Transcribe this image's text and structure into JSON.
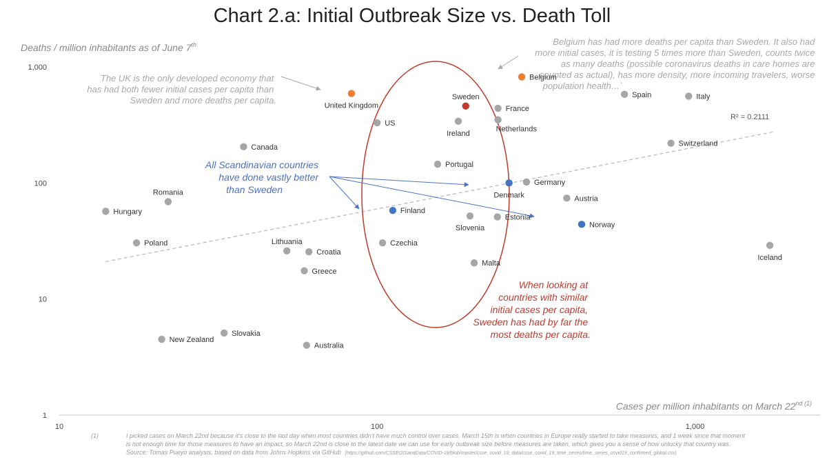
{
  "chart_data": {
    "type": "scatter",
    "title": "Chart 2.a: Initial Outbreak Size vs. Death Toll",
    "xlabel": "Cases per million inhabitants on March 22",
    "xlabel_sup": "nd (1)",
    "ylabel": "Deaths / million inhabitants as of June 7",
    "ylabel_sup": "th",
    "x_scale": "log",
    "y_scale": "log",
    "xlim": [
      10,
      2500
    ],
    "ylim": [
      1,
      1000
    ],
    "x_ticks": [
      {
        "v": 10,
        "label": "10"
      },
      {
        "v": 100,
        "label": "100"
      },
      {
        "v": 1000,
        "label": "1,000"
      }
    ],
    "y_ticks": [
      {
        "v": 1,
        "label": "1"
      },
      {
        "v": 10,
        "label": "10"
      },
      {
        "v": 100,
        "label": "100"
      },
      {
        "v": 1000,
        "label": "1,000"
      }
    ],
    "grid": false,
    "colors": {
      "default": "#a6a6a6",
      "orange": "#ed7d31",
      "red": "#c0392b",
      "blue": "#4472c4"
    },
    "points": [
      {
        "name": "Belgium",
        "x": 285,
        "y": 820,
        "color": "orange",
        "pos": "right"
      },
      {
        "name": "United Kingdom",
        "x": 83,
        "y": 590,
        "color": "orange",
        "pos": "below"
      },
      {
        "name": "Sweden",
        "x": 190,
        "y": 460,
        "color": "red",
        "pos": "above"
      },
      {
        "name": "Spain",
        "x": 600,
        "y": 580,
        "color": "default",
        "pos": "right"
      },
      {
        "name": "Italy",
        "x": 955,
        "y": 560,
        "color": "default",
        "pos": "right"
      },
      {
        "name": "France",
        "x": 240,
        "y": 440,
        "color": "default",
        "pos": "right"
      },
      {
        "name": "Ireland",
        "x": 180,
        "y": 340,
        "color": "default",
        "pos": "below"
      },
      {
        "name": "Netherlands",
        "x": 240,
        "y": 350,
        "color": "default",
        "pos": "below-right"
      },
      {
        "name": "US",
        "x": 100,
        "y": 330,
        "color": "default",
        "pos": "right"
      },
      {
        "name": "Switzerland",
        "x": 840,
        "y": 220,
        "color": "default",
        "pos": "right"
      },
      {
        "name": "Canada",
        "x": 38,
        "y": 205,
        "color": "default",
        "pos": "right"
      },
      {
        "name": "Portugal",
        "x": 155,
        "y": 145,
        "color": "default",
        "pos": "right"
      },
      {
        "name": "Denmark",
        "x": 260,
        "y": 100,
        "color": "blue",
        "pos": "below"
      },
      {
        "name": "Germany",
        "x": 295,
        "y": 102,
        "color": "default",
        "pos": "right"
      },
      {
        "name": "Austria",
        "x": 395,
        "y": 74,
        "color": "default",
        "pos": "right"
      },
      {
        "name": "Romania",
        "x": 22,
        "y": 69,
        "color": "default",
        "pos": "above"
      },
      {
        "name": "Hungary",
        "x": 14,
        "y": 57,
        "color": "default",
        "pos": "right"
      },
      {
        "name": "Finland",
        "x": 112,
        "y": 58,
        "color": "blue",
        "pos": "right"
      },
      {
        "name": "Slovenia",
        "x": 196,
        "y": 52,
        "color": "default",
        "pos": "below"
      },
      {
        "name": "Estonia",
        "x": 239,
        "y": 51,
        "color": "default",
        "pos": "right"
      },
      {
        "name": "Norway",
        "x": 440,
        "y": 44,
        "color": "blue",
        "pos": "right"
      },
      {
        "name": "Poland",
        "x": 17.5,
        "y": 30.5,
        "color": "default",
        "pos": "right"
      },
      {
        "name": "Czechia",
        "x": 104,
        "y": 30.5,
        "color": "default",
        "pos": "right"
      },
      {
        "name": "Lithuania",
        "x": 52,
        "y": 26,
        "color": "default",
        "pos": "above"
      },
      {
        "name": "Croatia",
        "x": 61,
        "y": 25.5,
        "color": "default",
        "pos": "right"
      },
      {
        "name": "Iceland",
        "x": 1720,
        "y": 29,
        "color": "default",
        "pos": "below"
      },
      {
        "name": "Malta",
        "x": 202,
        "y": 20.5,
        "color": "default",
        "pos": "right"
      },
      {
        "name": "Greece",
        "x": 59,
        "y": 17.5,
        "color": "default",
        "pos": "right"
      },
      {
        "name": "New Zealand",
        "x": 21,
        "y": 4.5,
        "color": "default",
        "pos": "right"
      },
      {
        "name": "Slovakia",
        "x": 33,
        "y": 5.1,
        "color": "default",
        "pos": "right"
      },
      {
        "name": "Australia",
        "x": 60,
        "y": 4.0,
        "color": "default",
        "pos": "right"
      }
    ],
    "trendline": {
      "x": [
        14,
        1760
      ],
      "y": [
        21,
        275
      ],
      "label": "R² = 0.2111"
    },
    "annotations": {
      "uk_note": [
        "The UK is the only developed economy that",
        "has had both fewer initial cases per capita than",
        "Sweden and more deaths per capita."
      ],
      "belgium_note": [
        "Belgium has had more deaths per capita than Sweden. It also had",
        "more initial cases, it is testing 5 times more than Sweden, counts twice",
        "as many deaths (possible coronavirus deaths in care homes are",
        "counted as actual), has more density, more incoming travelers, worse",
        "population health…`"
      ],
      "scandinavia_note": [
        "All Scandinavian countries",
        "have done vastly better",
        "than Sweden"
      ],
      "sweden_note": [
        "When looking at",
        "countries with similar",
        "initial cases per capita,",
        "Sweden has had by far the",
        "most deaths per capita."
      ]
    },
    "footnote": {
      "marker": "(1)",
      "lines": [
        "I picked cases on March 22nd because it's close to the last day when most countries didn't have much control over cases. March 15th is when countries in Europe really started to take measures, and 1 week since that moment",
        "is not enough time for those measures to have an impact, so March 22nd is close to the latest date we can use for early outbreak size before measures are taken, which gives you a sense of how unlucky that country was."
      ],
      "source": "Source: Tomas Pueyo analysis, based on data from Johns Hopkins via GitHub",
      "source_url": "(https://github.com/CSSEGISandData/COVID-19/blob/master/csse_covid_19_data/csse_covid_19_time_series/time_series_covid19_confirmed_global.csv)"
    }
  }
}
